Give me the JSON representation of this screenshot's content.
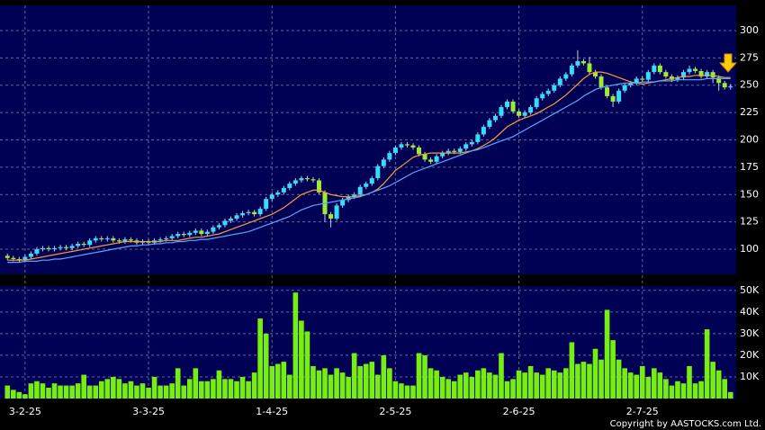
{
  "chart_data": [
    {
      "type": "candlestick",
      "open": [
        94,
        92,
        91,
        90,
        93,
        96,
        100,
        101,
        100,
        101,
        102,
        101,
        103,
        105,
        104,
        108,
        110,
        109,
        110,
        108,
        107,
        109,
        108,
        106,
        107,
        106,
        108,
        109,
        110,
        112,
        114,
        113,
        115,
        117,
        114,
        116,
        120,
        122,
        126,
        128,
        131,
        133,
        134,
        132,
        137,
        146,
        150,
        152,
        156,
        160,
        163,
        165,
        164,
        163,
        152,
        132,
        128,
        140,
        145,
        148,
        150,
        157,
        160,
        165,
        176,
        182,
        188,
        193,
        196,
        195,
        193,
        187,
        182,
        180,
        185,
        188,
        190,
        189,
        192,
        196,
        198,
        205,
        212,
        218,
        222,
        230,
        235,
        226,
        222,
        225,
        230,
        238,
        242,
        245,
        250,
        256,
        260,
        268,
        272,
        270,
        262,
        258,
        248,
        240,
        235,
        245,
        250,
        252,
        256,
        255,
        262,
        268,
        262,
        258,
        255,
        257,
        262,
        265,
        263,
        258,
        262,
        257,
        252,
        248
      ],
      "high": [
        96,
        94,
        93,
        95,
        98,
        102,
        103,
        103,
        103,
        104,
        104,
        105,
        107,
        107,
        110,
        112,
        112,
        112,
        112,
        110,
        111,
        111,
        110,
        109,
        109,
        110,
        111,
        112,
        114,
        116,
        116,
        117,
        119,
        119,
        118,
        122,
        124,
        128,
        130,
        133,
        135,
        136,
        136,
        139,
        148,
        152,
        154,
        158,
        162,
        165,
        167,
        167,
        166,
        165,
        154,
        134,
        142,
        147,
        150,
        152,
        159,
        162,
        167,
        178,
        184,
        190,
        195,
        198,
        198,
        197,
        195,
        189,
        184,
        187,
        190,
        192,
        192,
        194,
        198,
        200,
        207,
        214,
        220,
        224,
        232,
        237,
        237,
        228,
        227,
        232,
        240,
        244,
        247,
        252,
        258,
        262,
        270,
        282,
        274,
        276,
        264,
        260,
        250,
        242,
        247,
        252,
        254,
        258,
        258,
        264,
        270,
        270,
        264,
        260,
        259,
        264,
        268,
        267,
        265,
        264,
        264,
        259,
        254,
        251
      ],
      "low": [
        90,
        89,
        88,
        88,
        91,
        94,
        98,
        98,
        98,
        99,
        99,
        99,
        101,
        102,
        102,
        106,
        107,
        107,
        106,
        105,
        105,
        106,
        104,
        104,
        104,
        104,
        106,
        107,
        108,
        110,
        111,
        111,
        113,
        112,
        112,
        114,
        118,
        120,
        124,
        126,
        129,
        131,
        130,
        130,
        135,
        144,
        148,
        150,
        154,
        158,
        161,
        162,
        161,
        150,
        125,
        120,
        126,
        138,
        143,
        146,
        148,
        155,
        158,
        163,
        174,
        180,
        186,
        191,
        193,
        191,
        185,
        180,
        178,
        178,
        183,
        186,
        187,
        187,
        190,
        194,
        196,
        203,
        210,
        216,
        220,
        228,
        224,
        220,
        220,
        223,
        228,
        236,
        240,
        243,
        248,
        254,
        258,
        266,
        268,
        260,
        256,
        246,
        238,
        230,
        233,
        243,
        248,
        250,
        253,
        253,
        260,
        260,
        256,
        253,
        253,
        255,
        260,
        261,
        256,
        256,
        252,
        245,
        246,
        246
      ],
      "close": [
        92,
        91,
        90,
        93,
        96,
        100,
        101,
        100,
        101,
        102,
        101,
        103,
        105,
        104,
        108,
        110,
        109,
        110,
        108,
        107,
        109,
        108,
        106,
        107,
        106,
        108,
        109,
        110,
        112,
        114,
        113,
        115,
        117,
        114,
        116,
        120,
        122,
        126,
        128,
        131,
        133,
        134,
        132,
        137,
        146,
        150,
        152,
        156,
        160,
        163,
        165,
        164,
        163,
        152,
        132,
        128,
        140,
        145,
        148,
        150,
        157,
        160,
        165,
        176,
        182,
        188,
        193,
        196,
        195,
        193,
        187,
        182,
        180,
        185,
        188,
        190,
        189,
        192,
        196,
        198,
        205,
        212,
        218,
        222,
        230,
        235,
        226,
        222,
        225,
        230,
        238,
        242,
        245,
        250,
        256,
        260,
        268,
        272,
        270,
        262,
        258,
        248,
        240,
        235,
        245,
        250,
        252,
        256,
        255,
        262,
        268,
        262,
        258,
        255,
        257,
        262,
        265,
        263,
        258,
        262,
        257,
        252,
        248,
        249
      ],
      "up_color": "#33ddff",
      "down_color": "#99ee33",
      "series": [
        {
          "color": "#ff9933",
          "values": [
            90,
            90,
            90,
            90,
            91,
            92,
            93,
            94,
            95,
            96,
            97,
            98,
            99,
            100,
            101,
            102,
            103,
            104,
            105,
            106,
            107,
            107,
            107,
            107,
            107,
            107,
            107,
            108,
            108,
            108,
            109,
            110,
            111,
            111,
            112,
            113,
            114,
            116,
            118,
            120,
            122,
            124,
            126,
            128,
            130,
            132,
            135,
            138,
            142,
            146,
            150,
            152,
            154,
            154,
            152,
            150,
            149,
            148,
            148,
            148,
            149,
            150,
            152,
            155,
            160,
            166,
            172,
            176,
            180,
            184,
            186,
            187,
            188,
            188,
            188,
            188,
            188,
            188,
            189,
            190,
            192,
            195,
            198,
            202,
            207,
            212,
            215,
            218,
            220,
            222,
            224,
            227,
            230,
            233,
            237,
            241,
            246,
            251,
            256,
            260,
            262,
            262,
            261,
            259,
            257,
            255,
            253,
            252,
            251,
            252,
            253,
            254,
            255,
            256,
            257,
            258,
            258,
            259,
            259,
            259,
            259,
            258,
            257,
            257
          ]
        },
        {
          "color": "#55aaff",
          "values": [
            88,
            88,
            88,
            89,
            89,
            89,
            90,
            90,
            91,
            91,
            92,
            93,
            94,
            95,
            96,
            97,
            98,
            99,
            100,
            101,
            102,
            103,
            103,
            104,
            104,
            105,
            105,
            106,
            106,
            107,
            107,
            108,
            108,
            109,
            109,
            110,
            111,
            112,
            113,
            114,
            115,
            116,
            118,
            120,
            122,
            124,
            126,
            128,
            130,
            133,
            136,
            138,
            140,
            141,
            142,
            143,
            144,
            145,
            146,
            147,
            148,
            150,
            152,
            154,
            156,
            158,
            161,
            164,
            167,
            170,
            172,
            174,
            176,
            178,
            180,
            182,
            184,
            186,
            188,
            190,
            191,
            193,
            195,
            197,
            199,
            201,
            203,
            206,
            209,
            212,
            215,
            218,
            221,
            224,
            227,
            230,
            233,
            236,
            240,
            243,
            246,
            248,
            249,
            250,
            251,
            252,
            252,
            252,
            253,
            253,
            253,
            254,
            254,
            254,
            255,
            255,
            255,
            255,
            255,
            256,
            256,
            256,
            256,
            256
          ]
        }
      ],
      "ylim": [
        77,
        323
      ],
      "yticks": [
        100,
        125,
        150,
        175,
        200,
        225,
        250,
        275,
        300
      ],
      "grid": true
    },
    {
      "type": "bar",
      "color": "#77ee11",
      "categories": [
        null,
        null,
        null,
        "3-2-25",
        null,
        null,
        null,
        null,
        null,
        null,
        null,
        null,
        null,
        null,
        null,
        null,
        null,
        null,
        null,
        null,
        null,
        null,
        null,
        null,
        "3-3-25",
        null,
        null,
        null,
        null,
        null,
        null,
        null,
        null,
        null,
        null,
        null,
        null,
        null,
        null,
        null,
        null,
        null,
        null,
        null,
        null,
        "1-4-25",
        null,
        null,
        null,
        null,
        null,
        null,
        null,
        null,
        null,
        null,
        null,
        null,
        null,
        null,
        null,
        null,
        null,
        null,
        null,
        null,
        "2-5-25",
        null,
        null,
        null,
        null,
        null,
        null,
        null,
        null,
        null,
        null,
        null,
        null,
        null,
        null,
        null,
        null,
        null,
        null,
        null,
        null,
        "2-6-25",
        null,
        null,
        null,
        null,
        null,
        null,
        null,
        null,
        null,
        null,
        null,
        null,
        null,
        null,
        null,
        null,
        null,
        null,
        null,
        null,
        "2-7-25",
        null,
        null,
        null,
        null,
        null,
        null,
        null,
        null,
        null,
        null,
        null,
        null,
        null,
        null,
        null
      ],
      "values": [
        6000,
        4000,
        3000,
        2000,
        7000,
        8000,
        7000,
        5000,
        7000,
        6000,
        6000,
        6000,
        7000,
        11000,
        6000,
        6000,
        8000,
        9000,
        10000,
        9000,
        7000,
        8000,
        6000,
        7000,
        5000,
        10000,
        6000,
        6000,
        7000,
        14000,
        6000,
        9000,
        14000,
        8000,
        8000,
        9000,
        13000,
        9000,
        9000,
        8000,
        10000,
        8000,
        12000,
        37000,
        30000,
        15000,
        16000,
        17000,
        11000,
        49000,
        36000,
        31000,
        15000,
        13000,
        14000,
        11000,
        14000,
        12000,
        10000,
        21000,
        15000,
        16000,
        17000,
        11000,
        20000,
        14000,
        8000,
        7000,
        6000,
        6000,
        21000,
        20000,
        14000,
        13000,
        10000,
        9000,
        8000,
        11000,
        12000,
        10000,
        13000,
        14000,
        12000,
        11000,
        21000,
        8000,
        9000,
        13000,
        12000,
        15000,
        12000,
        11000,
        14000,
        13000,
        12000,
        14000,
        26000,
        16000,
        17000,
        16000,
        23000,
        18000,
        41000,
        27000,
        18000,
        14000,
        12000,
        11000,
        15000,
        10000,
        14000,
        12000,
        9000,
        6000,
        8000,
        7000,
        15000,
        7000,
        8000,
        32000,
        17000,
        13000,
        9000,
        3000
      ],
      "ylim": [
        0,
        52000
      ],
      "yticks": [
        {
          "value": 10000,
          "label": "10K"
        },
        {
          "value": 20000,
          "label": "20K"
        },
        {
          "value": 30000,
          "label": "30K"
        },
        {
          "value": 40000,
          "label": "40K"
        },
        {
          "value": 50000,
          "label": "50K"
        }
      ],
      "grid": true
    }
  ],
  "footer": "Copyright by AASTOCKS.com Ltd."
}
